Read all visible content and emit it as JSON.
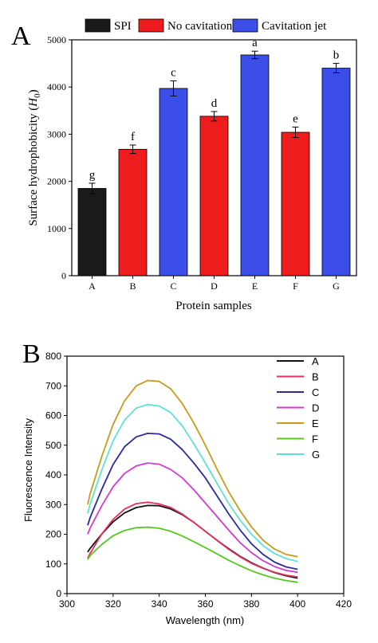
{
  "chart_data": [
    {
      "panel_label": "A",
      "type": "bar",
      "categories": [
        "A",
        "B",
        "C",
        "D",
        "E",
        "F",
        "G"
      ],
      "values": [
        1850,
        2680,
        3970,
        3380,
        4680,
        3040,
        4400
      ],
      "errors": [
        110,
        90,
        160,
        100,
        80,
        110,
        100
      ],
      "letters": [
        "g",
        "f",
        "c",
        "d",
        "a",
        "e",
        "b"
      ],
      "groups": [
        "SPI",
        "No cavitation jet",
        "Cavitation jet",
        "No cavitation jet",
        "Cavitation jet",
        "No cavitation jet",
        "Cavitation jet"
      ],
      "legend": [
        {
          "name": "SPI",
          "color": "#1a1a1a"
        },
        {
          "name": "No cavitation jet",
          "color": "#ee1c1c"
        },
        {
          "name": "Cavitation jet",
          "color": "#3b4ee8"
        }
      ],
      "xlabel": "Protein samples",
      "ylabel_main": "Surface hydrophobicity (",
      "ylabel_sym": "H",
      "ylabel_sub": "0",
      "ylabel_close": ")",
      "ylim": [
        0,
        5000
      ],
      "yticks": [
        0,
        1000,
        2000,
        3000,
        4000,
        5000
      ],
      "grid": false,
      "legend_position": "top"
    },
    {
      "panel_label": "B",
      "type": "line",
      "xlabel": "Wavelength (nm)",
      "ylabel": "Fluorescence Intensity",
      "xlim": [
        300,
        420
      ],
      "ylim": [
        0,
        800
      ],
      "xticks": [
        300,
        320,
        340,
        360,
        380,
        400,
        420
      ],
      "yticks": [
        0,
        100,
        200,
        300,
        400,
        500,
        600,
        700,
        800
      ],
      "grid": false,
      "legend_position": "top-right",
      "x": [
        309,
        310,
        315,
        320,
        325,
        330,
        335,
        340,
        345,
        350,
        355,
        360,
        365,
        370,
        375,
        380,
        385,
        390,
        395,
        400
      ],
      "series": [
        {
          "name": "A",
          "color": "#111111",
          "values": [
            140,
            152,
            200,
            242,
            272,
            290,
            297,
            296,
            285,
            266,
            240,
            210,
            180,
            152,
            126,
            104,
            86,
            71,
            60,
            52
          ]
        },
        {
          "name": "B",
          "color": "#e8305a",
          "values": [
            120,
            135,
            200,
            250,
            285,
            303,
            308,
            302,
            290,
            268,
            240,
            210,
            180,
            150,
            124,
            102,
            85,
            72,
            62,
            56
          ]
        },
        {
          "name": "C",
          "color": "#2a2a9e",
          "values": [
            230,
            255,
            350,
            435,
            495,
            528,
            540,
            538,
            520,
            485,
            440,
            390,
            330,
            270,
            215,
            168,
            132,
            106,
            90,
            82
          ]
        },
        {
          "name": "D",
          "color": "#d23ad2",
          "values": [
            200,
            220,
            295,
            360,
            405,
            430,
            440,
            436,
            418,
            390,
            350,
            305,
            260,
            215,
            172,
            138,
            111,
            91,
            78,
            72
          ]
        },
        {
          "name": "E",
          "color": "#c99a1a",
          "values": [
            300,
            335,
            460,
            570,
            650,
            700,
            718,
            715,
            690,
            640,
            575,
            500,
            420,
            345,
            280,
            225,
            180,
            150,
            132,
            124
          ]
        },
        {
          "name": "F",
          "color": "#55c81f",
          "values": [
            115,
            128,
            165,
            195,
            213,
            222,
            224,
            220,
            210,
            194,
            175,
            155,
            134,
            113,
            94,
            77,
            63,
            52,
            44,
            38
          ]
        },
        {
          "name": "G",
          "color": "#5fe0d6",
          "values": [
            270,
            300,
            415,
            515,
            585,
            625,
            637,
            632,
            610,
            565,
            505,
            440,
            372,
            305,
            248,
            200,
            162,
            135,
            118,
            108
          ]
        }
      ]
    }
  ]
}
